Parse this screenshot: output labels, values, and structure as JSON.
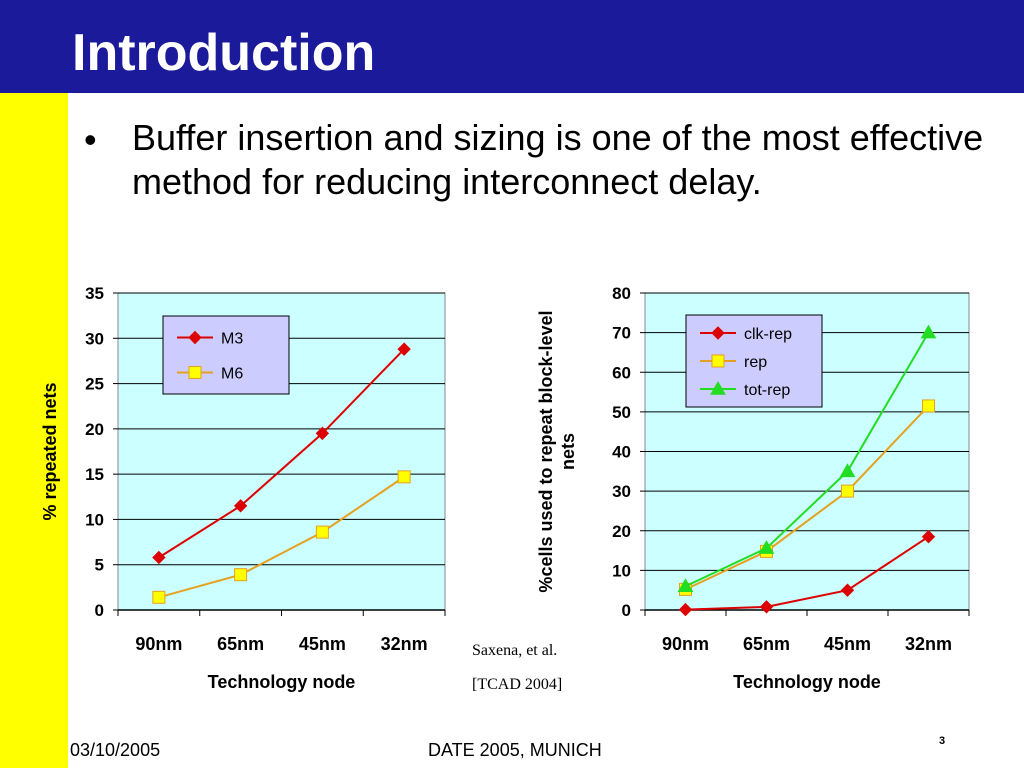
{
  "slide": {
    "title": "Introduction",
    "bullet_marker": "•",
    "bullet_text": "Buffer insertion and sizing is one of the most effective method for reducing interconnect delay.",
    "citation_line1": "Saxena, et al.",
    "citation_line2": "[TCAD 2004]",
    "footer_date": "03/10/2005",
    "footer_event": "DATE 2005, MUNICH",
    "page_number": "3",
    "header_color": "#1a1a9a",
    "sidebar_color": "#ffff00"
  },
  "chart_data": [
    {
      "type": "line",
      "categories": [
        "90nm",
        "65nm",
        "45nm",
        "32nm"
      ],
      "xlabel": "Technology node",
      "ylabel": "% repeated nets",
      "ylim": [
        0,
        35
      ],
      "yticks": [
        0,
        5,
        10,
        15,
        20,
        25,
        30,
        35
      ],
      "grid": true,
      "plot_background": "#ccffff",
      "legend_position": "top-left",
      "series": [
        {
          "name": "M3",
          "values": [
            5.8,
            11.5,
            19.5,
            28.8
          ],
          "color": "#dd0000",
          "marker": "diamond"
        },
        {
          "name": "M6",
          "values": [
            1.4,
            3.9,
            8.6,
            14.7
          ],
          "color": "#e6a020",
          "marker": "square"
        }
      ]
    },
    {
      "type": "line",
      "categories": [
        "90nm",
        "65nm",
        "45nm",
        "32nm"
      ],
      "xlabel": "Technology node",
      "ylabel": "%cells used to repeat block-level nets",
      "ylim": [
        0,
        80
      ],
      "yticks": [
        0,
        10,
        20,
        30,
        40,
        50,
        60,
        70,
        80
      ],
      "grid": true,
      "plot_background": "#ccffff",
      "legend_position": "top-left",
      "series": [
        {
          "name": "clk-rep",
          "values": [
            0.1,
            0.8,
            5.0,
            18.5
          ],
          "color": "#dd0000",
          "marker": "diamond"
        },
        {
          "name": "rep",
          "values": [
            5.2,
            14.8,
            30.0,
            51.5
          ],
          "color": "#e6a020",
          "marker": "square"
        },
        {
          "name": "tot-rep",
          "values": [
            6.0,
            15.6,
            35.0,
            70.0
          ],
          "color": "#22dd22",
          "marker": "triangle"
        }
      ]
    }
  ]
}
